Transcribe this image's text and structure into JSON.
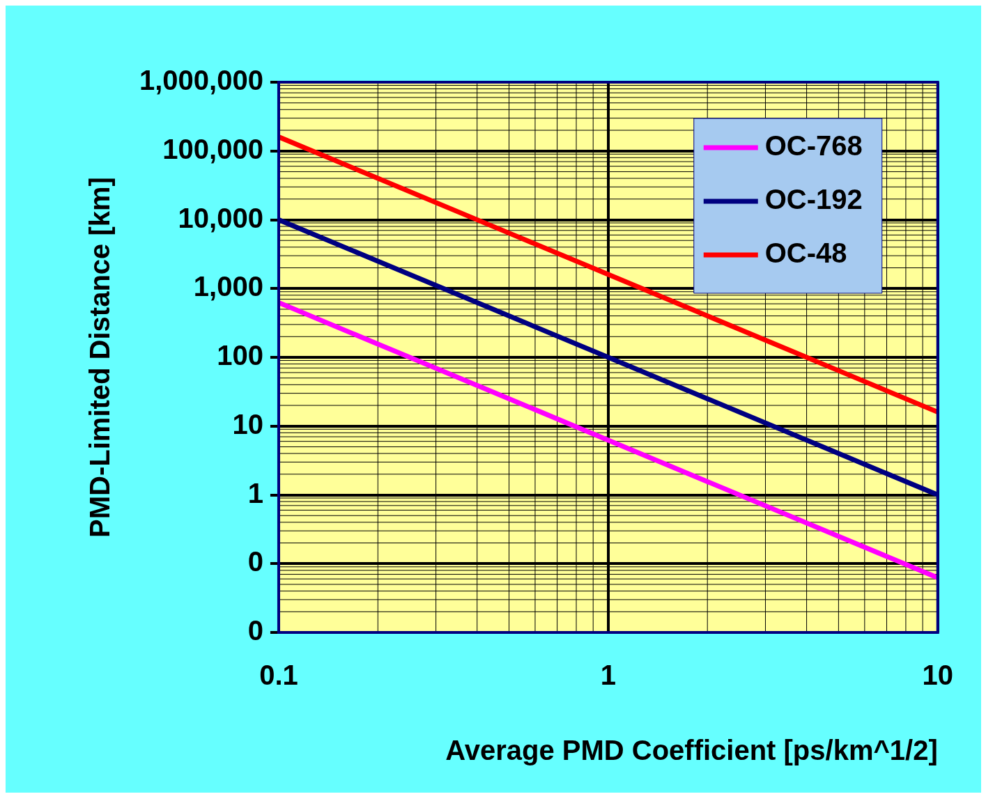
{
  "chart_data": {
    "type": "line",
    "xlabel": "Average PMD Coefficient [ps/km^1/2]",
    "ylabel": "PMD-Limited Distance [km]",
    "x": [
      0.1,
      0.2,
      0.5,
      1,
      2,
      5,
      10
    ],
    "series": [
      {
        "name": "OC-768",
        "color": "#ff00ff",
        "values": [
          625,
          156,
          25,
          6.25,
          1.56,
          0.25,
          0.0625
        ]
      },
      {
        "name": "OC-192",
        "color": "#000080",
        "values": [
          10000,
          2500,
          400,
          100,
          25,
          4,
          1
        ]
      },
      {
        "name": "OC-48",
        "color": "#ff0000",
        "values": [
          160000,
          40000,
          6400,
          1600,
          400,
          64,
          16
        ]
      }
    ],
    "log": "xy",
    "xlim": [
      0.1,
      10
    ],
    "xticks": [
      0.1,
      1,
      10
    ],
    "ylim": [
      0.01,
      1000000
    ],
    "yticks": [
      {
        "value": 0.01,
        "label": "0"
      },
      {
        "value": 0.1,
        "label": "0"
      },
      {
        "value": 1,
        "label": "1"
      },
      {
        "value": 10,
        "label": "10"
      },
      {
        "value": 100,
        "label": "100"
      },
      {
        "value": 1000,
        "label": "1,000"
      },
      {
        "value": 10000,
        "label": "10,000"
      },
      {
        "value": 100000,
        "label": "100,000"
      },
      {
        "value": 1000000,
        "label": "1,000,000"
      }
    ],
    "grid": true,
    "legend": "top right",
    "marker": "none",
    "line_style": "solid"
  }
}
